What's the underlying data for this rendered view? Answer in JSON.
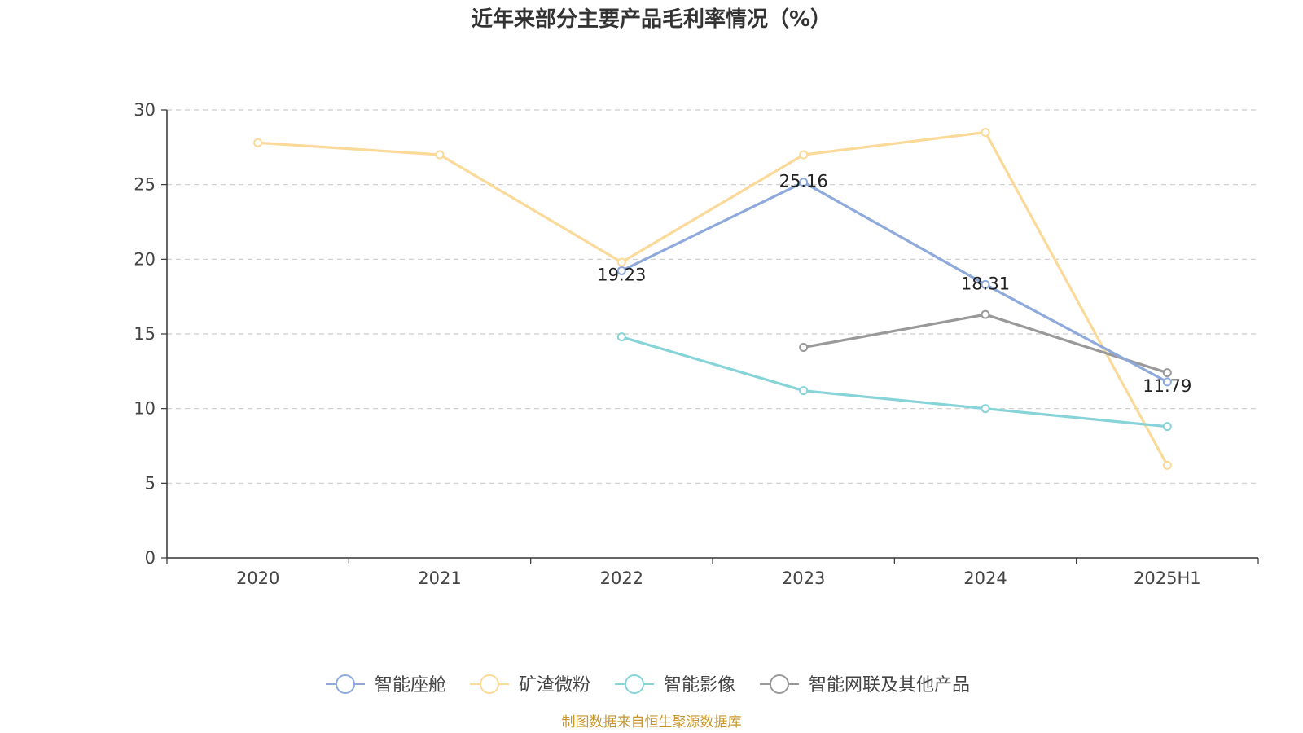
{
  "chart_data": {
    "type": "line",
    "title": "近年来部分主要产品毛利率情况（%）",
    "xlabel": "",
    "ylabel": "",
    "categories": [
      "2020",
      "2021",
      "2022",
      "2023",
      "2024",
      "2025H1"
    ],
    "ylim": [
      0,
      30
    ],
    "yticks": [
      0,
      5,
      10,
      15,
      20,
      25,
      30
    ],
    "grid": true,
    "legend_position": "bottom",
    "series": [
      {
        "name": "智能座舱",
        "color": "#8eaadb",
        "values": [
          null,
          null,
          19.23,
          25.16,
          18.31,
          11.79
        ],
        "labels": [
          null,
          null,
          "19.23",
          "25.16",
          "18.31",
          "11.79"
        ]
      },
      {
        "name": "矿渣微粉",
        "color": "#fad999",
        "values": [
          27.8,
          27.0,
          19.8,
          27.0,
          28.5,
          6.2
        ],
        "labels": [
          null,
          null,
          null,
          null,
          null,
          null
        ]
      },
      {
        "name": "智能影像",
        "color": "#86d4d8",
        "values": [
          null,
          null,
          14.8,
          11.2,
          10.0,
          8.8
        ],
        "labels": [
          null,
          null,
          null,
          null,
          null,
          null
        ]
      },
      {
        "name": "智能网联及其他产品",
        "color": "#999999",
        "values": [
          null,
          null,
          null,
          14.1,
          16.3,
          12.4
        ],
        "labels": [
          null,
          null,
          null,
          null,
          null,
          null
        ]
      }
    ],
    "source": "制图数据来自恒生聚源数据库",
    "source_color": "#c8952c"
  }
}
